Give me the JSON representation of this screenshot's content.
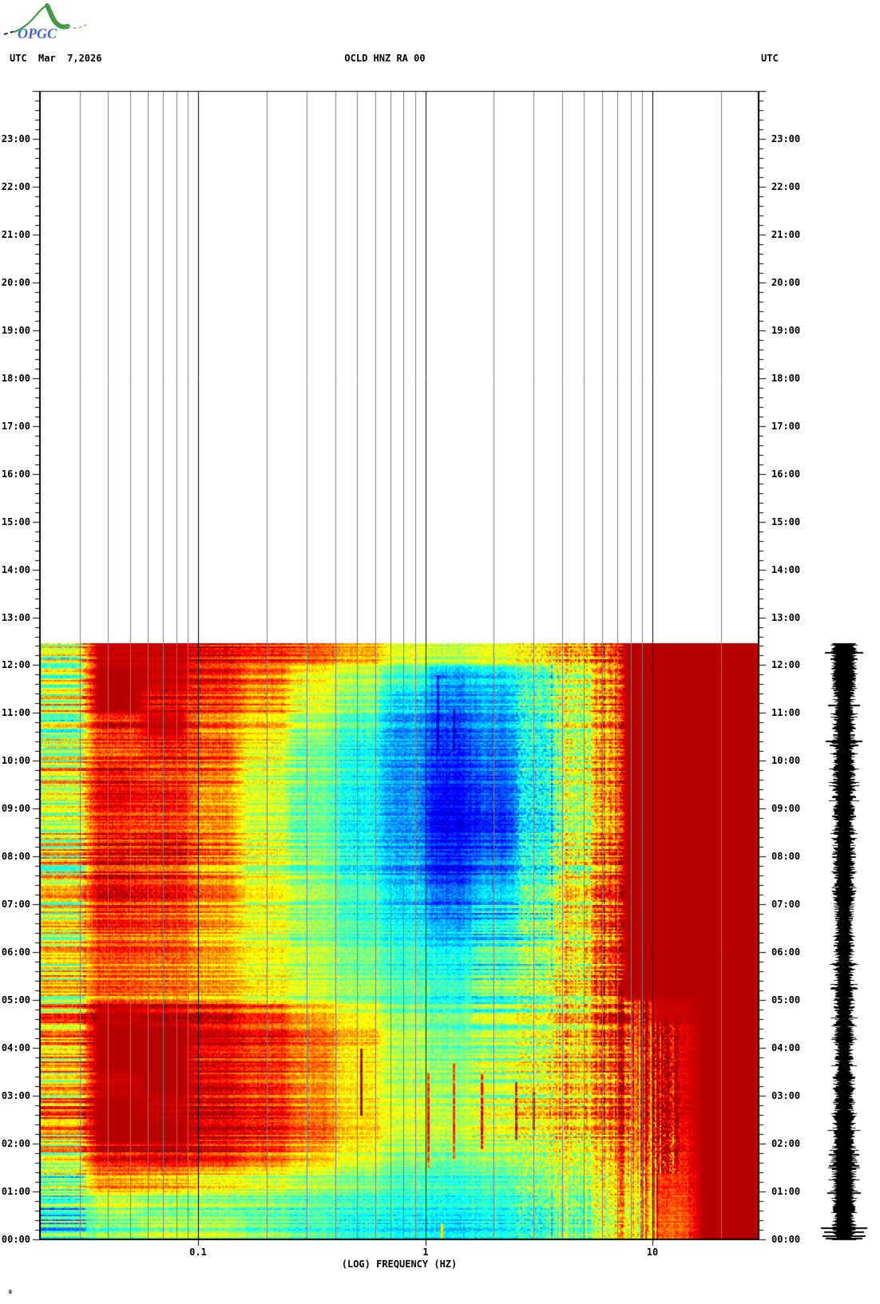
{
  "header": {
    "utc_left": "UTC",
    "date": "Mar  7,2026",
    "station": "OCLD HNZ RA 00",
    "utc_right": "UTC"
  },
  "logo": {
    "text": "OPGC",
    "green": "#3f9a41",
    "light_green": "#8fbf8f",
    "dark": "#1a3a1a",
    "blue": "#3b62c4"
  },
  "footer": {
    "mark": "ª"
  },
  "chart_data": {
    "type": "heatmap",
    "title": "OCLD HNZ RA 00",
    "subtitle_date": "Mar 7,2026",
    "xlabel": "(LOG) FREQUENCY (HZ)",
    "time_axis_label": "UTC",
    "x_scale": "log",
    "freq_range_hz": [
      0.02,
      29.5
    ],
    "x_ticks": [
      {
        "label": "0.1",
        "f": 0.1
      },
      {
        "label": "1",
        "f": 1
      },
      {
        "label": "10",
        "f": 10
      }
    ],
    "minor_gridlines_hz": [
      0.03,
      0.04,
      0.05,
      0.06,
      0.07,
      0.08,
      0.09,
      0.2,
      0.3,
      0.4,
      0.5,
      0.6,
      0.7,
      0.8,
      0.9,
      2,
      3,
      4,
      5,
      6,
      7,
      8,
      9,
      20
    ],
    "major_gridlines_hz": [
      0.1,
      1,
      10
    ],
    "time_labels": [
      "00:00",
      "01:00",
      "02:00",
      "03:00",
      "04:00",
      "05:00",
      "06:00",
      "07:00",
      "08:00",
      "09:00",
      "10:00",
      "11:00",
      "12:00",
      "13:00",
      "14:00",
      "15:00",
      "16:00",
      "17:00",
      "18:00",
      "19:00",
      "20:00",
      "21:00",
      "22:00",
      "23:00"
    ],
    "time_range_shown_h": [
      0,
      24
    ],
    "data_time_range_h": [
      0.0,
      12.45
    ],
    "grid_on": true,
    "colormap": "jet",
    "heatmap": {
      "freq_edges_hz": [
        0.02,
        0.03,
        0.06,
        0.09,
        0.15,
        0.25,
        0.4,
        0.65,
        1.0,
        1.6,
        2.5,
        4.0,
        5.5,
        7.0,
        10,
        13,
        29.5
      ],
      "time_edges_h_top_to_bottom": [
        12.45,
        12.0,
        11.5,
        11.0,
        10.5,
        10.0,
        9.5,
        9.0,
        8.5,
        8.0,
        7.5,
        7.0,
        6.5,
        6.0,
        5.5,
        5.0,
        4.5,
        4.0,
        3.5,
        3.0,
        2.5,
        2.0,
        1.5,
        1.0,
        0.5,
        0.0
      ],
      "intensity_rows_top_to_bottom": [
        [
          0.55,
          0.95,
          0.95,
          0.9,
          0.85,
          0.8,
          0.72,
          0.6,
          0.55,
          0.6,
          0.65,
          0.72,
          0.8,
          0.97,
          0.97,
          0.97
        ],
        [
          0.58,
          0.97,
          0.95,
          0.9,
          0.8,
          0.65,
          0.55,
          0.45,
          0.3,
          0.35,
          0.45,
          0.6,
          0.75,
          0.97,
          0.97,
          0.97
        ],
        [
          0.6,
          0.97,
          0.92,
          0.85,
          0.75,
          0.6,
          0.5,
          0.35,
          0.25,
          0.3,
          0.45,
          0.6,
          0.75,
          0.97,
          0.97,
          0.97
        ],
        [
          0.55,
          0.9,
          0.95,
          0.8,
          0.7,
          0.55,
          0.45,
          0.3,
          0.2,
          0.28,
          0.42,
          0.6,
          0.75,
          0.97,
          0.97,
          0.97
        ],
        [
          0.6,
          0.85,
          0.9,
          0.85,
          0.65,
          0.5,
          0.4,
          0.3,
          0.18,
          0.25,
          0.4,
          0.6,
          0.75,
          0.97,
          0.97,
          0.97
        ],
        [
          0.65,
          0.9,
          0.85,
          0.8,
          0.6,
          0.5,
          0.4,
          0.28,
          0.15,
          0.22,
          0.4,
          0.6,
          0.75,
          0.97,
          0.97,
          0.97
        ],
        [
          0.6,
          0.92,
          0.9,
          0.75,
          0.6,
          0.48,
          0.38,
          0.28,
          0.12,
          0.2,
          0.38,
          0.58,
          0.75,
          0.97,
          0.97,
          0.97
        ],
        [
          0.65,
          0.9,
          0.88,
          0.8,
          0.62,
          0.5,
          0.4,
          0.3,
          0.12,
          0.18,
          0.38,
          0.6,
          0.75,
          0.97,
          0.97,
          0.97
        ],
        [
          0.6,
          0.88,
          0.9,
          0.78,
          0.6,
          0.48,
          0.38,
          0.28,
          0.13,
          0.2,
          0.4,
          0.6,
          0.76,
          0.97,
          0.97,
          0.97
        ],
        [
          0.62,
          0.9,
          0.86,
          0.75,
          0.6,
          0.5,
          0.4,
          0.3,
          0.15,
          0.25,
          0.42,
          0.62,
          0.78,
          0.97,
          0.97,
          0.97
        ],
        [
          0.6,
          0.88,
          0.85,
          0.75,
          0.6,
          0.5,
          0.42,
          0.32,
          0.2,
          0.3,
          0.45,
          0.62,
          0.78,
          0.97,
          0.97,
          0.97
        ],
        [
          0.58,
          0.85,
          0.82,
          0.72,
          0.6,
          0.5,
          0.42,
          0.35,
          0.25,
          0.32,
          0.45,
          0.62,
          0.78,
          0.97,
          0.97,
          0.97
        ],
        [
          0.6,
          0.82,
          0.8,
          0.7,
          0.6,
          0.52,
          0.45,
          0.4,
          0.32,
          0.38,
          0.48,
          0.62,
          0.78,
          0.97,
          0.97,
          0.97
        ],
        [
          0.62,
          0.8,
          0.78,
          0.72,
          0.62,
          0.55,
          0.48,
          0.42,
          0.38,
          0.42,
          0.5,
          0.62,
          0.78,
          0.97,
          0.97,
          0.97
        ],
        [
          0.6,
          0.78,
          0.75,
          0.7,
          0.62,
          0.55,
          0.5,
          0.45,
          0.4,
          0.45,
          0.52,
          0.64,
          0.78,
          0.97,
          0.97,
          0.97
        ],
        [
          0.7,
          0.95,
          0.93,
          0.88,
          0.8,
          0.7,
          0.6,
          0.5,
          0.45,
          0.5,
          0.55,
          0.66,
          0.8,
          0.9,
          0.95,
          0.97
        ],
        [
          0.72,
          0.97,
          0.97,
          0.93,
          0.88,
          0.8,
          0.7,
          0.55,
          0.48,
          0.52,
          0.58,
          0.68,
          0.8,
          0.88,
          0.92,
          0.97
        ],
        [
          0.68,
          0.97,
          0.97,
          0.9,
          0.85,
          0.78,
          0.65,
          0.55,
          0.5,
          0.55,
          0.6,
          0.7,
          0.78,
          0.85,
          0.92,
          0.97
        ],
        [
          0.65,
          0.95,
          0.97,
          0.92,
          0.85,
          0.75,
          0.65,
          0.55,
          0.52,
          0.55,
          0.6,
          0.68,
          0.75,
          0.85,
          0.92,
          0.97
        ],
        [
          0.7,
          0.97,
          0.95,
          0.9,
          0.85,
          0.75,
          0.65,
          0.58,
          0.52,
          0.55,
          0.62,
          0.68,
          0.75,
          0.85,
          0.92,
          0.97
        ],
        [
          0.68,
          0.97,
          0.97,
          0.92,
          0.88,
          0.8,
          0.68,
          0.58,
          0.55,
          0.58,
          0.6,
          0.66,
          0.72,
          0.82,
          0.9,
          0.97
        ],
        [
          0.6,
          0.9,
          0.92,
          0.88,
          0.8,
          0.7,
          0.6,
          0.52,
          0.48,
          0.52,
          0.55,
          0.6,
          0.68,
          0.78,
          0.88,
          0.97
        ],
        [
          0.5,
          0.75,
          0.72,
          0.65,
          0.6,
          0.55,
          0.5,
          0.45,
          0.42,
          0.45,
          0.5,
          0.55,
          0.62,
          0.72,
          0.85,
          0.97
        ],
        [
          0.4,
          0.55,
          0.5,
          0.5,
          0.48,
          0.45,
          0.42,
          0.4,
          0.38,
          0.4,
          0.45,
          0.5,
          0.58,
          0.68,
          0.82,
          0.97
        ],
        [
          0.42,
          0.5,
          0.55,
          0.55,
          0.5,
          0.45,
          0.4,
          0.38,
          0.35,
          0.38,
          0.42,
          0.5,
          0.58,
          0.68,
          0.8,
          0.97
        ]
      ],
      "dark_streaks": [
        {
          "f": 1.03,
          "t1": 1.5,
          "t2": 3.5
        },
        {
          "f": 1.33,
          "t1": 1.7,
          "t2": 3.7
        },
        {
          "f": 1.77,
          "t1": 1.9,
          "t2": 3.5
        },
        {
          "f": 2.5,
          "t1": 2.1,
          "t2": 3.3
        },
        {
          "f": 3.0,
          "t1": 2.3,
          "t2": 3.1
        },
        {
          "f": 0.52,
          "t1": 2.6,
          "t2": 4.0
        },
        {
          "f": 1.18,
          "t1": 0.05,
          "t2": 0.35
        }
      ],
      "cyan_streaks": [
        {
          "f": 1.13,
          "t1": 10.2,
          "t2": 11.8
        },
        {
          "f": 1.33,
          "t1": 10.2,
          "t2": 11.1
        }
      ]
    },
    "trace": {
      "description": "helicorder-style amplitude trace, black",
      "time_range_h": [
        0.0,
        12.45
      ],
      "spikes_y_halfwidth": [
        [
          818,
          24
        ],
        [
          826,
          17
        ],
        [
          884,
          20
        ],
        [
          929,
          23
        ],
        [
          934,
          18
        ],
        [
          962,
          13
        ],
        [
          999,
          15
        ],
        [
          1040,
          11
        ],
        [
          1063,
          13
        ],
        [
          1093,
          11
        ],
        [
          1120,
          14
        ],
        [
          1151,
          11
        ],
        [
          1185,
          13
        ],
        [
          1210,
          11
        ],
        [
          1239,
          17
        ],
        [
          1262,
          13
        ],
        [
          1297,
          12
        ],
        [
          1325,
          11
        ],
        [
          1350,
          14
        ],
        [
          1378,
          11
        ],
        [
          1402,
          12
        ],
        [
          1430,
          11
        ],
        [
          1447,
          19
        ],
        [
          1461,
          19
        ],
        [
          1478,
          13
        ],
        [
          1495,
          21
        ],
        [
          1516,
          14
        ],
        [
          1539,
          29
        ],
        [
          1544,
          25
        ],
        [
          1549,
          27
        ],
        [
          1552,
          23
        ]
      ]
    }
  }
}
